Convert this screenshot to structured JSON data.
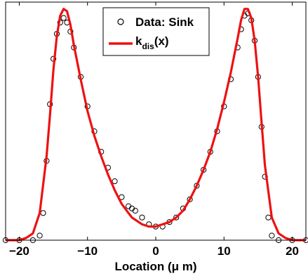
{
  "chart_data": {
    "type": "line",
    "xlabel": "Location (μ m)",
    "xlim": [
      -22,
      22
    ],
    "ylim": [
      0,
      1.05
    ],
    "x_ticks": [
      -20,
      -10,
      0,
      10,
      20
    ],
    "x_tick_labels": [
      "−20",
      "−10",
      "0",
      "10",
      "20"
    ],
    "y_ticks_labeled": false,
    "grid": false,
    "legend_position": "top-center",
    "series": [
      {
        "name": "Data: Sink",
        "style": "scatter-open-circle",
        "color": "#000000",
        "x": [
          -22,
          -20,
          -18,
          -17,
          -16.5,
          -16,
          -15.5,
          -15,
          -14.5,
          -14,
          -13.5,
          -13,
          -12.5,
          -12,
          -11,
          -10,
          -9,
          -8,
          -7,
          -6,
          -5,
          -4,
          -3.5,
          -3,
          -2,
          -1,
          0,
          1,
          2,
          3,
          4,
          5,
          6,
          7,
          8,
          9,
          10,
          11,
          12,
          12.5,
          13,
          13.5,
          14,
          14.5,
          15,
          15.5,
          16,
          16.5,
          17,
          18,
          20,
          22
        ],
        "y": [
          0.0,
          0.0,
          0.0,
          0.02,
          0.12,
          0.35,
          0.6,
          0.8,
          0.91,
          0.96,
          0.98,
          0.96,
          0.92,
          0.85,
          0.72,
          0.59,
          0.48,
          0.39,
          0.32,
          0.26,
          0.19,
          0.15,
          0.14,
          0.13,
          0.1,
          0.07,
          0.06,
          0.06,
          0.08,
          0.1,
          0.14,
          0.18,
          0.24,
          0.31,
          0.39,
          0.48,
          0.59,
          0.71,
          0.85,
          0.93,
          0.99,
          1.0,
          0.97,
          0.88,
          0.72,
          0.5,
          0.28,
          0.1,
          0.02,
          0.0,
          0.0,
          0.0
        ]
      },
      {
        "name": "k_dis(x)",
        "name_main": "k",
        "name_sub": "dis",
        "name_suffix": "(x)",
        "style": "line",
        "color": "#ee1111",
        "x": [
          -22,
          -20,
          -19,
          -18,
          -17,
          -16,
          -15.5,
          -15,
          -14.5,
          -14,
          -13.5,
          -13,
          -12.5,
          -12,
          -11,
          -10,
          -9,
          -8,
          -7,
          -6,
          -5,
          -4,
          -3.5,
          -3,
          -2,
          -1,
          0,
          1,
          2,
          3,
          4,
          5,
          6,
          7,
          8,
          9,
          10,
          11,
          12,
          12.5,
          13,
          13.5,
          14,
          14.5,
          15,
          15.5,
          16,
          17,
          18,
          19,
          20,
          22
        ],
        "y": [
          0.0,
          0.0,
          0.01,
          0.03,
          0.12,
          0.37,
          0.55,
          0.75,
          0.9,
          0.99,
          1.02,
          1.01,
          0.95,
          0.86,
          0.71,
          0.57,
          0.46,
          0.37,
          0.29,
          0.22,
          0.16,
          0.12,
          0.1,
          0.09,
          0.07,
          0.06,
          0.06,
          0.07,
          0.08,
          0.1,
          0.13,
          0.18,
          0.24,
          0.31,
          0.39,
          0.49,
          0.61,
          0.74,
          0.89,
          0.97,
          1.02,
          1.02,
          0.98,
          0.88,
          0.72,
          0.52,
          0.33,
          0.1,
          0.03,
          0.01,
          0.0,
          0.0
        ]
      }
    ]
  }
}
